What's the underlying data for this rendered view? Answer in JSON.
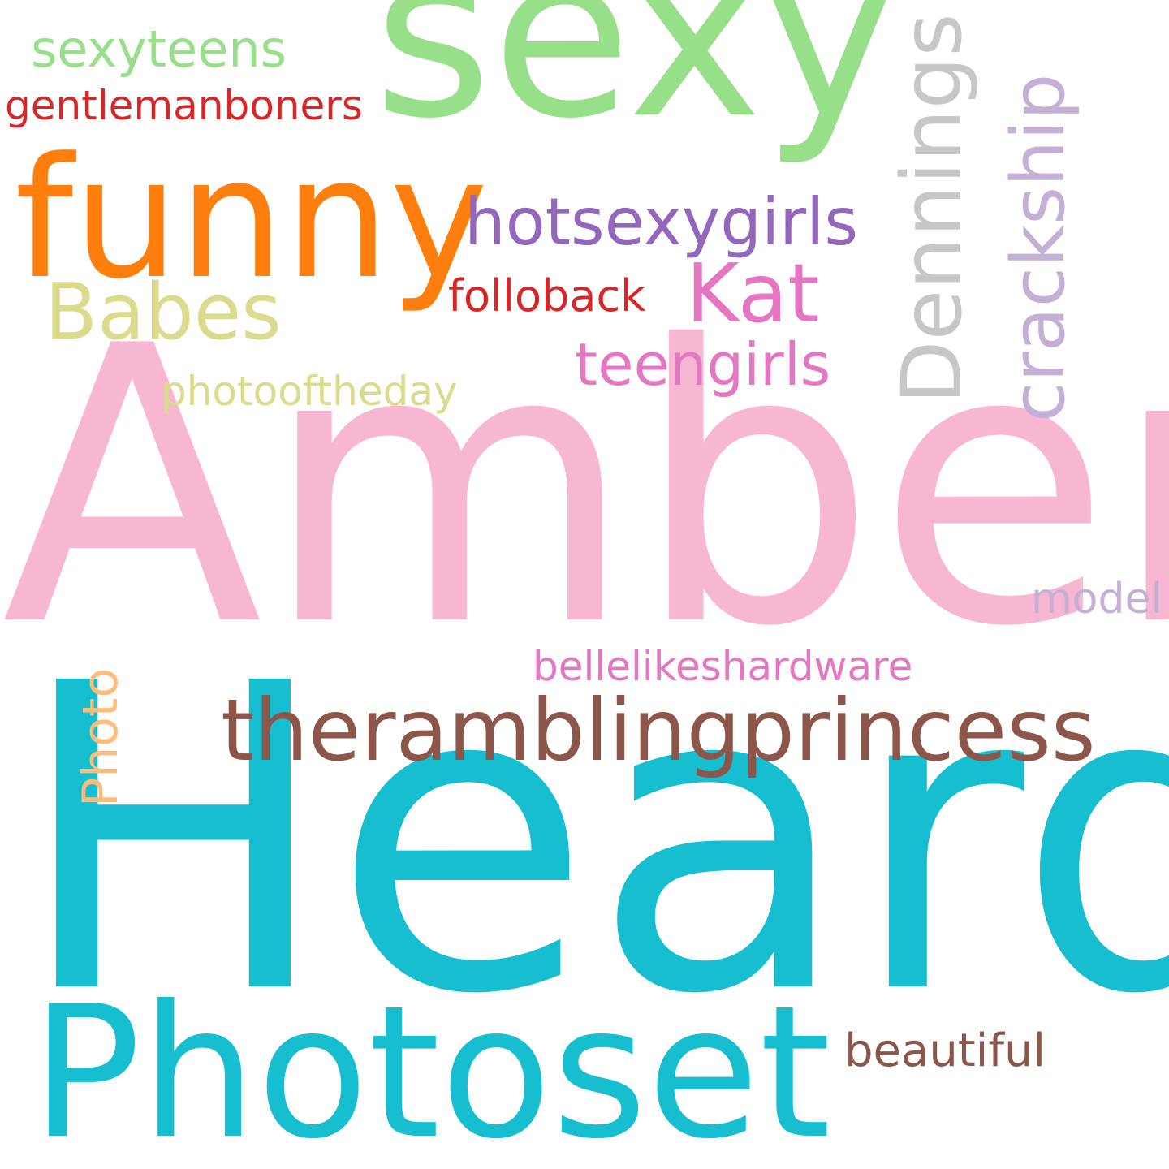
{
  "words": {
    "amber": {
      "text": "Amber",
      "color": "#f7b6d2"
    },
    "heard": {
      "text": "Heard",
      "color": "#17becf"
    },
    "sexy": {
      "text": "sexy",
      "color": "#98df8a"
    },
    "funny": {
      "text": "funny",
      "color": "#ff7f0e"
    },
    "photoset": {
      "text": "Photoset",
      "color": "#17becf"
    },
    "theramblingprincess": {
      "text": "theramblingprincess",
      "color": "#8c564b"
    },
    "hotsexygirls": {
      "text": "hotsexygirls",
      "color": "#9467bd"
    },
    "kat": {
      "text": "Kat",
      "color": "#e377c2"
    },
    "babes": {
      "text": "Babes",
      "color": "#dbdb8d"
    },
    "teengirls": {
      "text": "teengirls",
      "color": "#e377c2"
    },
    "folloback": {
      "text": "folloback",
      "color": "#d62728"
    },
    "photooftheday": {
      "text": "photooftheday",
      "color": "#dbdb8d"
    },
    "sexyteens": {
      "text": "sexyteens",
      "color": "#98df8a"
    },
    "gentlemanboners": {
      "text": "gentlemanboners",
      "color": "#d62728"
    },
    "bellelikeshardware": {
      "text": "bellelikeshardware",
      "color": "#e377c2"
    },
    "model": {
      "text": "model",
      "color": "#c5b0d5"
    },
    "beautiful": {
      "text": "beautiful",
      "color": "#8c564b"
    },
    "dennings": {
      "text": "Dennings",
      "color": "#c7c7c7"
    },
    "crackship": {
      "text": "crackship",
      "color": "#c5b0d5"
    },
    "photo": {
      "text": "Photo",
      "color": "#ffbb78"
    }
  }
}
